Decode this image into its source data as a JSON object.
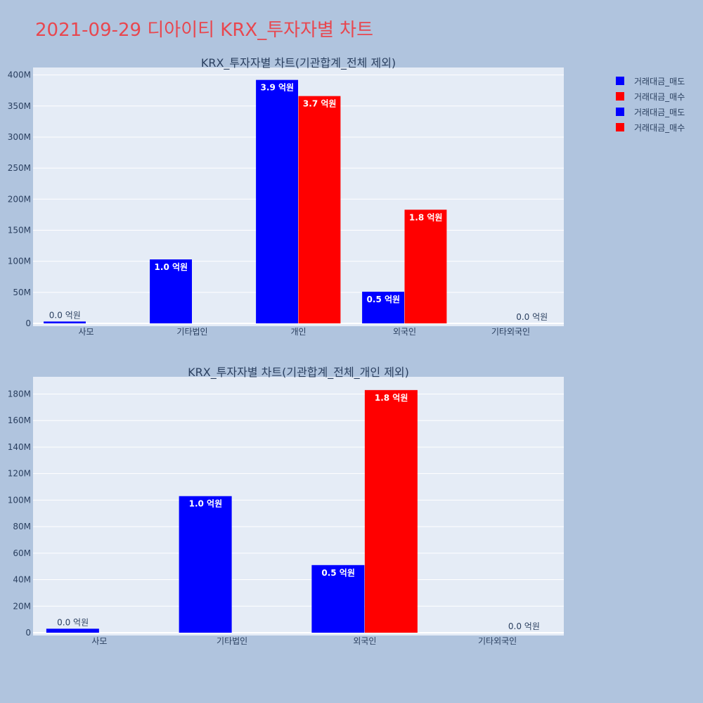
{
  "page": {
    "title": "2021-09-29 디아이티 KRX_투자자별 차트"
  },
  "colors": {
    "sell": "#0000ff",
    "buy": "#ff0000",
    "plot_bg": "#e5ecf6",
    "grid": "#ffffff",
    "page_bg": "#b0c4de"
  },
  "legend": {
    "items": [
      {
        "label": "거래대금_매도",
        "color": "#0000ff"
      },
      {
        "label": "거래대금_매수",
        "color": "#ff0000"
      },
      {
        "label": "거래대금_매도",
        "color": "#0000ff"
      },
      {
        "label": "거래대금_매수",
        "color": "#ff0000"
      }
    ]
  },
  "chart_data": [
    {
      "type": "bar",
      "title": "KRX_투자자별 차트(기관합계_전체 제외)",
      "categories": [
        "사모",
        "기타법인",
        "개인",
        "외국인",
        "기타외국인"
      ],
      "series": [
        {
          "name": "거래대금_매도",
          "color": "#0000ff",
          "values": [
            3000000,
            103000000,
            392000000,
            51000000,
            0
          ],
          "labels": [
            "0.0 억원",
            "1.0 억원",
            "3.9 억원",
            "0.5 억원",
            ""
          ]
        },
        {
          "name": "거래대금_매수",
          "color": "#ff0000",
          "values": [
            0,
            0,
            366000000,
            183000000,
            0
          ],
          "labels": [
            "",
            "",
            "3.7 억원",
            "1.8 억원",
            "0.0 억원"
          ]
        }
      ],
      "ylim": [
        0,
        412000000
      ],
      "yticks": [
        0,
        50000000,
        100000000,
        150000000,
        200000000,
        250000000,
        300000000,
        350000000,
        400000000
      ],
      "yticklabels": [
        "0",
        "50M",
        "100M",
        "150M",
        "200M",
        "250M",
        "300M",
        "350M",
        "400M"
      ],
      "grid": true
    },
    {
      "type": "bar",
      "title": "KRX_투자자별 차트(기관합계_전체_개인 제외)",
      "categories": [
        "사모",
        "기타법인",
        "외국인",
        "기타외국인"
      ],
      "series": [
        {
          "name": "거래대금_매도",
          "color": "#0000ff",
          "values": [
            3000000,
            103000000,
            51000000,
            0
          ],
          "labels": [
            "0.0 억원",
            "1.0 억원",
            "0.5 억원",
            ""
          ]
        },
        {
          "name": "거래대금_매수",
          "color": "#ff0000",
          "values": [
            0,
            0,
            183000000,
            0
          ],
          "labels": [
            "",
            "",
            "1.8 억원",
            "0.0 억원"
          ]
        }
      ],
      "ylim": [
        0,
        193000000
      ],
      "yticks": [
        0,
        20000000,
        40000000,
        60000000,
        80000000,
        100000000,
        120000000,
        140000000,
        160000000,
        180000000
      ],
      "yticklabels": [
        "0",
        "20M",
        "40M",
        "60M",
        "80M",
        "100M",
        "120M",
        "140M",
        "160M",
        "180M"
      ],
      "grid": true
    }
  ]
}
